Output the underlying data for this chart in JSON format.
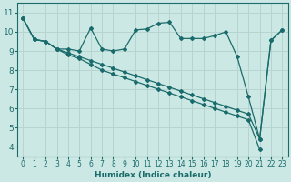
{
  "background_color": "#cce8e4",
  "grid_color": "#b8d4d0",
  "line_color": "#1a6b6b",
  "marker_color": "#1a6b6b",
  "xlabel": "Humidex (Indice chaleur)",
  "xlabel_fontsize": 6.5,
  "ytick_fontsize": 6.5,
  "xtick_fontsize": 5.5,
  "xlim": [
    -0.5,
    23.5
  ],
  "ylim": [
    3.5,
    11.5
  ],
  "yticks": [
    4,
    5,
    6,
    7,
    8,
    9,
    10,
    11
  ],
  "xticks": [
    0,
    1,
    2,
    3,
    4,
    5,
    6,
    7,
    8,
    9,
    10,
    11,
    12,
    13,
    14,
    15,
    16,
    17,
    18,
    19,
    20,
    21,
    22,
    23
  ],
  "series": [
    {
      "x": [
        0,
        1,
        2,
        3,
        4,
        5,
        6,
        7,
        8,
        9,
        10,
        11,
        12,
        13,
        14,
        15,
        16,
        17,
        18,
        19,
        20,
        21,
        22,
        23
      ],
      "y": [
        10.7,
        9.6,
        9.5,
        9.1,
        8.8,
        8.6,
        8.3,
        8.0,
        7.8,
        7.6,
        7.4,
        7.2,
        7.0,
        6.8,
        6.6,
        6.4,
        6.2,
        6.0,
        5.8,
        5.6,
        5.4,
        3.85,
        null,
        null
      ]
    },
    {
      "x": [
        0,
        1,
        2,
        3,
        4,
        5,
        6,
        7,
        8,
        9,
        10,
        11,
        12,
        13,
        14,
        15,
        16,
        17,
        18,
        19,
        20,
        21,
        22,
        23
      ],
      "y": [
        10.7,
        9.6,
        9.5,
        9.1,
        8.9,
        8.7,
        8.5,
        8.3,
        8.1,
        7.9,
        7.7,
        7.5,
        7.3,
        7.1,
        6.9,
        6.7,
        6.5,
        6.3,
        6.1,
        5.9,
        5.7,
        4.4,
        9.55,
        10.1
      ]
    },
    {
      "x": [
        0,
        1,
        2,
        3,
        4,
        5,
        6,
        7,
        8,
        9,
        10,
        11,
        12,
        13,
        14,
        15,
        16,
        17,
        18,
        19,
        20,
        21,
        22,
        23
      ],
      "y": [
        10.7,
        9.6,
        9.5,
        9.1,
        9.1,
        9.0,
        10.2,
        9.1,
        9.0,
        9.1,
        10.1,
        10.15,
        10.45,
        10.5,
        9.65,
        9.65,
        9.65,
        9.8,
        10.0,
        8.7,
        6.6,
        4.4,
        9.55,
        10.1
      ]
    }
  ]
}
